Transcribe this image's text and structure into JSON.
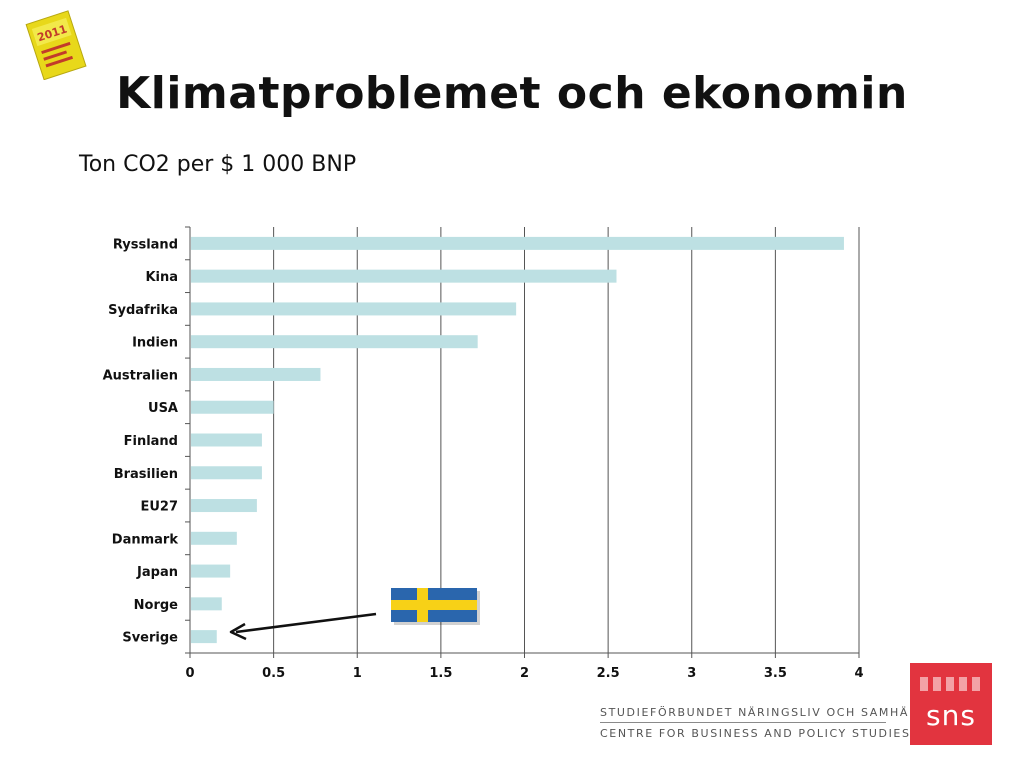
{
  "slide": {
    "title": "Klimatproblemet och ekonomin",
    "subtitle": "Ton CO2 per $ 1 000 BNP",
    "book_icon": "book-cover-icon",
    "book_label": "2011",
    "flag_icon": "swedish-flag-icon"
  },
  "footer": {
    "line1": "STUDIEFÖRBUNDET NÄRINGSLIV OCH SAMHÄLLE",
    "line2": "CENTRE FOR BUSINESS AND POLICY STUDIES",
    "logo_text": "sns",
    "logo_color": "#e2343f"
  },
  "chart_data": {
    "type": "bar",
    "orientation": "horizontal",
    "categories": [
      "Ryssland",
      "Kina",
      "Sydafrika",
      "Indien",
      "Australien",
      "USA",
      "Finland",
      "Brasilien",
      "EU27",
      "Danmark",
      "Japan",
      "Norge",
      "Sverige"
    ],
    "values": [
      3.91,
      2.55,
      1.95,
      1.72,
      0.78,
      0.5,
      0.43,
      0.43,
      0.4,
      0.28,
      0.24,
      0.19,
      0.16
    ],
    "xticks": [
      0,
      0.5,
      1,
      1.5,
      2,
      2.5,
      3,
      3.5,
      4
    ],
    "xtick_labels": [
      "0",
      "0.5",
      "1",
      "1.5",
      "2",
      "2.5",
      "3",
      "3.5",
      "4"
    ],
    "xlim": [
      0,
      4
    ],
    "grid": true,
    "bar_color": "#bde0e3",
    "highlight_category": "Sverige",
    "annotation": "arrow from Swedish flag to Sverige bar"
  }
}
